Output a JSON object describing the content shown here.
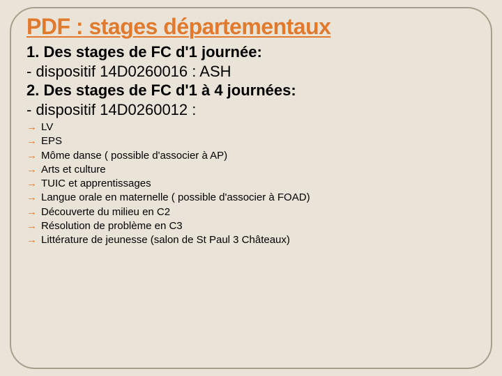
{
  "colors": {
    "background": "#eae4d8",
    "border": "#a89f8c",
    "title": "#e17a2d",
    "arrow": "#e17a2d",
    "text": "#000000"
  },
  "title": "PDF : stages départementaux",
  "mainLines": [
    {
      "text": "1. Des stages de FC d'1 journée:",
      "bold": true
    },
    {
      "text": "- dispositif 14D0260016 : ASH",
      "bold": false
    },
    {
      "text": "2. Des stages de FC d'1 à 4 journées:",
      "bold": true
    },
    {
      "text": "- dispositif 14D0260012 :",
      "bold": false
    }
  ],
  "subItems": [
    "LV",
    "EPS",
    "Môme danse ( possible d'associer à AP)",
    "Arts et culture",
    "TUIC et  apprentissages",
    "Langue orale en maternelle ( possible d'associer à FOAD)",
    "Découverte du milieu en C2",
    "Résolution de problème en C3",
    "Littérature de jeunesse (salon de St Paul 3 Châteaux)"
  ]
}
